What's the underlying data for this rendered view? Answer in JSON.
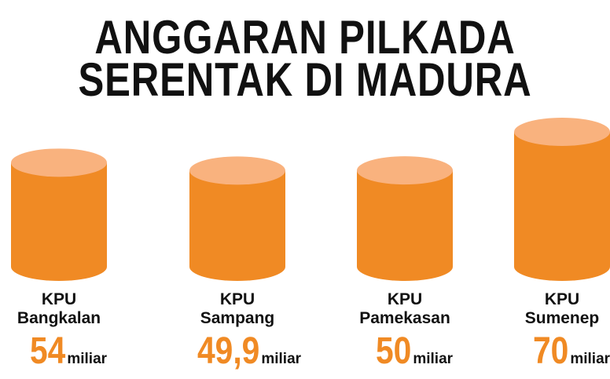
{
  "chart_data": {
    "type": "bar",
    "title": [
      "ANGGARAN PILKADA",
      "SERENTAK DI MADURA"
    ],
    "categories": [
      "KPU Bangkalan",
      "KPU Sampang",
      "KPU Pamekasan",
      "KPU Sumenep"
    ],
    "values": [
      54,
      49.9,
      50,
      70
    ],
    "value_labels": [
      "54",
      "49,9",
      "50",
      "70"
    ],
    "unit": "miliar",
    "color": "#f08a24",
    "top_color": "#f9b27e"
  }
}
